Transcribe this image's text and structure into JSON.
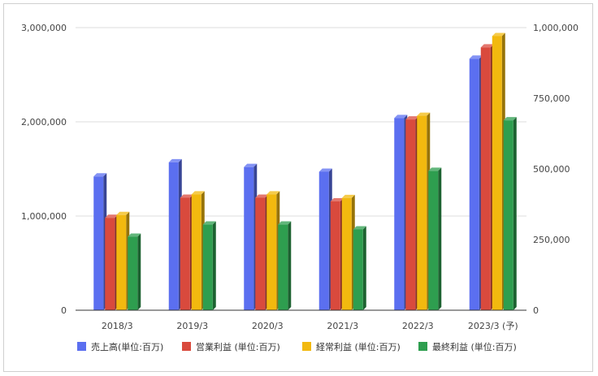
{
  "chart_data": {
    "type": "bar",
    "categories": [
      "2018/3",
      "2019/3",
      "2020/3",
      "2021/3",
      "2022/3",
      "2023/3 (予)"
    ],
    "series": [
      {
        "name": "売上高(単位:百万)",
        "axis": "left",
        "color": "#5b6ff0",
        "values": [
          1420000,
          1570000,
          1520000,
          1470000,
          2040000,
          2670000
        ]
      },
      {
        "name": "営業利益 (単位:百万)",
        "axis": "right",
        "color": "#d94a3d",
        "values": [
          327000,
          398000,
          398000,
          385000,
          675000,
          930000
        ]
      },
      {
        "name": "経常利益 (単位:百万)",
        "axis": "right",
        "color": "#f2b90f",
        "values": [
          337000,
          410000,
          410000,
          397000,
          688000,
          970000
        ]
      },
      {
        "name": "最終利益 (単位:百万)",
        "axis": "right",
        "color": "#2e9e4f",
        "values": [
          260000,
          303000,
          303000,
          286000,
          493000,
          672000
        ]
      }
    ],
    "left_axis": {
      "ylim": [
        0,
        3000000
      ],
      "ticks": [
        "0",
        "1,000,000",
        "2,000,000",
        "3,000,000"
      ]
    },
    "right_axis": {
      "ylim": [
        0,
        1000000
      ],
      "ticks": [
        "0",
        "250,000",
        "500,000",
        "750,000",
        "1,000,000"
      ]
    },
    "grid": true,
    "legend_position": "bottom",
    "style": "3d-bar"
  }
}
